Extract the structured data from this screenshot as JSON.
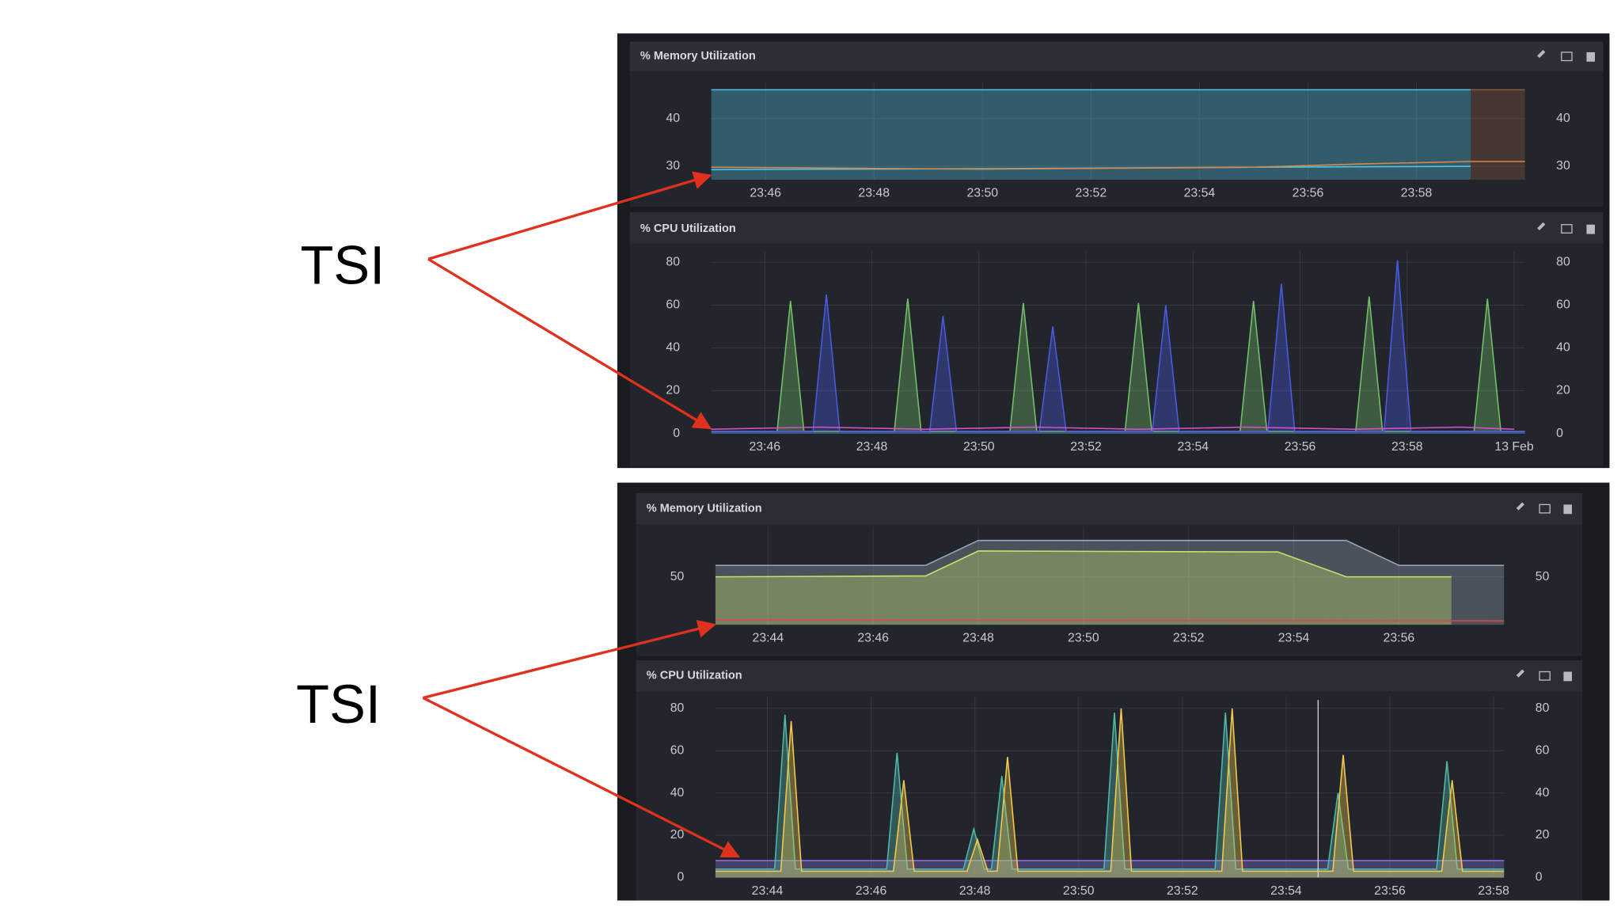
{
  "labels": [
    "TSI",
    "TSI"
  ],
  "chart_data": [
    {
      "type": "line",
      "title": "% Memory Utilization",
      "xlim": [
        45,
        60
      ],
      "xticks": [
        {
          "value": 46,
          "label": "23:46"
        },
        {
          "value": 48,
          "label": "23:48"
        },
        {
          "value": 50,
          "label": "23:50"
        },
        {
          "value": 52,
          "label": "23:52"
        },
        {
          "value": 54,
          "label": "23:54"
        },
        {
          "value": 56,
          "label": "23:56"
        },
        {
          "value": 58,
          "label": "23:58"
        }
      ],
      "ylim": [
        27.2,
        46.2
      ],
      "yticks": [
        30,
        40
      ],
      "grid": true,
      "series": [
        {
          "color": "#4fc3e6",
          "fill": true,
          "x": [
            45,
            59
          ],
          "values": [
            46,
            46
          ]
        },
        {
          "color": "#8a5a45",
          "fill": true,
          "x": [
            59,
            60
          ],
          "values": [
            46,
            46
          ]
        },
        {
          "color": "#4fc3e6",
          "x": [
            45,
            50,
            55,
            59
          ],
          "values": [
            29.3,
            29.5,
            29.8,
            30
          ]
        },
        {
          "color": "#d9894a",
          "x": [
            45,
            50,
            55,
            57,
            59,
            60
          ],
          "values": [
            29.8,
            29.4,
            29.8,
            30.5,
            31,
            31
          ]
        }
      ]
    },
    {
      "type": "line",
      "title": "% CPU Utilization",
      "xlim": [
        45,
        60.2
      ],
      "xticks": [
        {
          "value": 46,
          "label": "23:46"
        },
        {
          "value": 48,
          "label": "23:48"
        },
        {
          "value": 50,
          "label": "23:50"
        },
        {
          "value": 52,
          "label": "23:52"
        },
        {
          "value": 54,
          "label": "23:54"
        },
        {
          "value": 56,
          "label": "23:56"
        },
        {
          "value": 58,
          "label": "23:58"
        },
        {
          "value": 60,
          "label": "13 Feb"
        }
      ],
      "ylim": [
        0,
        82
      ],
      "yticks": [
        0,
        20,
        40,
        60,
        80
      ],
      "grid": true,
      "series": [
        {
          "color": "#73bf69",
          "fill": true,
          "x": [
            45,
            46.23,
            46.48,
            46.73,
            48.42,
            48.67,
            48.92,
            50.58,
            50.83,
            51.08,
            52.73,
            52.98,
            53.23,
            54.88,
            55.13,
            55.38,
            57.04,
            57.29,
            57.54,
            59.25,
            59.5,
            59.75,
            60.2
          ],
          "values": [
            1,
            1,
            62,
            1,
            1,
            63,
            1,
            1,
            61,
            1,
            1,
            61,
            1,
            1,
            62,
            1,
            1,
            64,
            1,
            1,
            63,
            1,
            1
          ]
        },
        {
          "color": "#4a5ae0",
          "fill": true,
          "x": [
            45,
            46.9,
            47.15,
            47.4,
            49.08,
            49.33,
            49.58,
            51.13,
            51.38,
            51.63,
            53.24,
            53.49,
            53.74,
            55.4,
            55.65,
            55.9,
            57.57,
            57.82,
            58.07,
            60.2
          ],
          "values": [
            1,
            1,
            65,
            1,
            1,
            55,
            1,
            1,
            50,
            1,
            1,
            60,
            1,
            1,
            70,
            1,
            1,
            81,
            1,
            1
          ]
        },
        {
          "color": "#d64fd6",
          "x": [
            45,
            47,
            49,
            51,
            53,
            55,
            57,
            59,
            60
          ],
          "values": [
            2,
            3,
            2,
            3,
            2,
            3,
            2,
            3,
            2
          ]
        }
      ]
    },
    {
      "type": "line",
      "title": "% Memory Utilization",
      "xlim": [
        43,
        58
      ],
      "xticks": [
        {
          "value": 44,
          "label": "23:44"
        },
        {
          "value": 46,
          "label": "23:46"
        },
        {
          "value": 48,
          "label": "23:48"
        },
        {
          "value": 50,
          "label": "23:50"
        },
        {
          "value": 52,
          "label": "23:52"
        },
        {
          "value": 54,
          "label": "23:54"
        },
        {
          "value": 56,
          "label": "23:56"
        }
      ],
      "ylim": [
        0,
        96
      ],
      "yticks": [
        50
      ],
      "grid": true,
      "series": [
        {
          "color": "#9aa5b8",
          "fill": true,
          "x": [
            43,
            47,
            48,
            55,
            56,
            58
          ],
          "values": [
            62,
            62,
            88,
            88,
            62,
            62
          ]
        },
        {
          "color": "#c8e36a",
          "fill": true,
          "x": [
            43,
            47,
            48,
            53.7,
            55,
            57
          ],
          "values": [
            50,
            51,
            77,
            76,
            50,
            50
          ]
        },
        {
          "color": "#e0454c",
          "x": [
            43,
            58
          ],
          "values": [
            5,
            4
          ]
        }
      ]
    },
    {
      "type": "line",
      "title": "% CPU Utilization",
      "xlim": [
        43,
        58.2
      ],
      "xticks": [
        {
          "value": 44,
          "label": "23:44"
        },
        {
          "value": 46,
          "label": "23:46"
        },
        {
          "value": 48,
          "label": "23:48"
        },
        {
          "value": 50,
          "label": "23:50"
        },
        {
          "value": 52,
          "label": "23:52"
        },
        {
          "value": 54,
          "label": "23:54"
        },
        {
          "value": 56,
          "label": "23:56"
        },
        {
          "value": 58,
          "label": "23:58"
        }
      ],
      "ylim": [
        0,
        83
      ],
      "yticks": [
        0,
        20,
        40,
        60,
        80
      ],
      "grid": true,
      "series": [
        {
          "color": "#8a6fdf",
          "fill": true,
          "x": [
            43,
            58.2
          ],
          "values": [
            8,
            8
          ]
        },
        {
          "color": "#4fb8a8",
          "fill": true,
          "x": [
            43,
            44.14,
            44.34,
            44.54,
            46.3,
            46.5,
            46.7,
            47.78,
            47.98,
            48.18,
            48.32,
            48.52,
            48.72,
            50.49,
            50.69,
            50.89,
            52.63,
            52.83,
            53.03,
            54.8,
            55.0,
            55.2,
            56.9,
            57.1,
            57.3,
            58.2
          ],
          "values": [
            4,
            4,
            77,
            4,
            4,
            59,
            4,
            4,
            23,
            4,
            4,
            48,
            4,
            4,
            78,
            4,
            4,
            78,
            4,
            4,
            40,
            4,
            4,
            55,
            4,
            4
          ]
        },
        {
          "color": "#f2c94c",
          "fill": true,
          "x": [
            43,
            44.26,
            44.46,
            44.66,
            46.43,
            46.63,
            46.83,
            47.85,
            48.05,
            48.25,
            48.43,
            48.63,
            48.83,
            50.62,
            50.82,
            51.02,
            52.76,
            52.96,
            53.16,
            54.9,
            55.1,
            55.3,
            57.0,
            57.2,
            57.4,
            58.2
          ],
          "values": [
            3,
            3,
            74,
            3,
            3,
            46,
            3,
            3,
            18,
            3,
            3,
            57,
            3,
            3,
            80,
            3,
            3,
            80,
            3,
            3,
            58,
            3,
            3,
            46,
            3,
            3
          ]
        }
      ]
    }
  ]
}
